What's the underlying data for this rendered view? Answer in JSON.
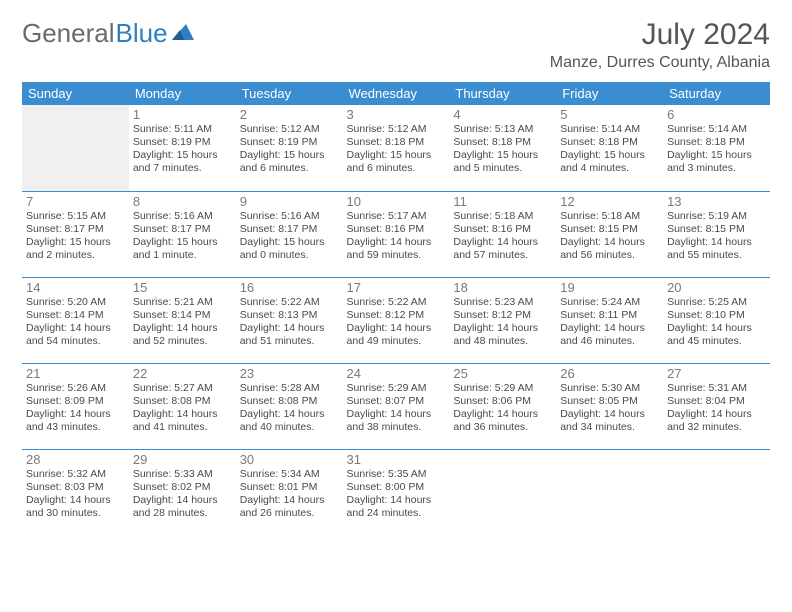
{
  "logo": {
    "part1": "General",
    "part2": "Blue"
  },
  "title": "July 2024",
  "location": "Manze, Durres County, Albania",
  "colors": {
    "header_bg": "#3a8dd0",
    "header_text": "#ffffff",
    "border": "#3a8dd0",
    "blank_bg": "#f0f0f0",
    "logo_gray": "#6b6b6b",
    "logo_blue": "#2f7fc2",
    "text": "#4a4a4a",
    "title_text": "#555555"
  },
  "daysOfWeek": [
    "Sunday",
    "Monday",
    "Tuesday",
    "Wednesday",
    "Thursday",
    "Friday",
    "Saturday"
  ],
  "weeks": [
    [
      null,
      {
        "n": "1",
        "sr": "5:11 AM",
        "ss": "8:19 PM",
        "dl": "15 hours and 7 minutes."
      },
      {
        "n": "2",
        "sr": "5:12 AM",
        "ss": "8:19 PM",
        "dl": "15 hours and 6 minutes."
      },
      {
        "n": "3",
        "sr": "5:12 AM",
        "ss": "8:18 PM",
        "dl": "15 hours and 6 minutes."
      },
      {
        "n": "4",
        "sr": "5:13 AM",
        "ss": "8:18 PM",
        "dl": "15 hours and 5 minutes."
      },
      {
        "n": "5",
        "sr": "5:14 AM",
        "ss": "8:18 PM",
        "dl": "15 hours and 4 minutes."
      },
      {
        "n": "6",
        "sr": "5:14 AM",
        "ss": "8:18 PM",
        "dl": "15 hours and 3 minutes."
      }
    ],
    [
      {
        "n": "7",
        "sr": "5:15 AM",
        "ss": "8:17 PM",
        "dl": "15 hours and 2 minutes."
      },
      {
        "n": "8",
        "sr": "5:16 AM",
        "ss": "8:17 PM",
        "dl": "15 hours and 1 minute."
      },
      {
        "n": "9",
        "sr": "5:16 AM",
        "ss": "8:17 PM",
        "dl": "15 hours and 0 minutes."
      },
      {
        "n": "10",
        "sr": "5:17 AM",
        "ss": "8:16 PM",
        "dl": "14 hours and 59 minutes."
      },
      {
        "n": "11",
        "sr": "5:18 AM",
        "ss": "8:16 PM",
        "dl": "14 hours and 57 minutes."
      },
      {
        "n": "12",
        "sr": "5:18 AM",
        "ss": "8:15 PM",
        "dl": "14 hours and 56 minutes."
      },
      {
        "n": "13",
        "sr": "5:19 AM",
        "ss": "8:15 PM",
        "dl": "14 hours and 55 minutes."
      }
    ],
    [
      {
        "n": "14",
        "sr": "5:20 AM",
        "ss": "8:14 PM",
        "dl": "14 hours and 54 minutes."
      },
      {
        "n": "15",
        "sr": "5:21 AM",
        "ss": "8:14 PM",
        "dl": "14 hours and 52 minutes."
      },
      {
        "n": "16",
        "sr": "5:22 AM",
        "ss": "8:13 PM",
        "dl": "14 hours and 51 minutes."
      },
      {
        "n": "17",
        "sr": "5:22 AM",
        "ss": "8:12 PM",
        "dl": "14 hours and 49 minutes."
      },
      {
        "n": "18",
        "sr": "5:23 AM",
        "ss": "8:12 PM",
        "dl": "14 hours and 48 minutes."
      },
      {
        "n": "19",
        "sr": "5:24 AM",
        "ss": "8:11 PM",
        "dl": "14 hours and 46 minutes."
      },
      {
        "n": "20",
        "sr": "5:25 AM",
        "ss": "8:10 PM",
        "dl": "14 hours and 45 minutes."
      }
    ],
    [
      {
        "n": "21",
        "sr": "5:26 AM",
        "ss": "8:09 PM",
        "dl": "14 hours and 43 minutes."
      },
      {
        "n": "22",
        "sr": "5:27 AM",
        "ss": "8:08 PM",
        "dl": "14 hours and 41 minutes."
      },
      {
        "n": "23",
        "sr": "5:28 AM",
        "ss": "8:08 PM",
        "dl": "14 hours and 40 minutes."
      },
      {
        "n": "24",
        "sr": "5:29 AM",
        "ss": "8:07 PM",
        "dl": "14 hours and 38 minutes."
      },
      {
        "n": "25",
        "sr": "5:29 AM",
        "ss": "8:06 PM",
        "dl": "14 hours and 36 minutes."
      },
      {
        "n": "26",
        "sr": "5:30 AM",
        "ss": "8:05 PM",
        "dl": "14 hours and 34 minutes."
      },
      {
        "n": "27",
        "sr": "5:31 AM",
        "ss": "8:04 PM",
        "dl": "14 hours and 32 minutes."
      }
    ],
    [
      {
        "n": "28",
        "sr": "5:32 AM",
        "ss": "8:03 PM",
        "dl": "14 hours and 30 minutes."
      },
      {
        "n": "29",
        "sr": "5:33 AM",
        "ss": "8:02 PM",
        "dl": "14 hours and 28 minutes."
      },
      {
        "n": "30",
        "sr": "5:34 AM",
        "ss": "8:01 PM",
        "dl": "14 hours and 26 minutes."
      },
      {
        "n": "31",
        "sr": "5:35 AM",
        "ss": "8:00 PM",
        "dl": "14 hours and 24 minutes."
      },
      null,
      null,
      null
    ]
  ],
  "labels": {
    "sunrise": "Sunrise:",
    "sunset": "Sunset:",
    "daylight": "Daylight:"
  }
}
